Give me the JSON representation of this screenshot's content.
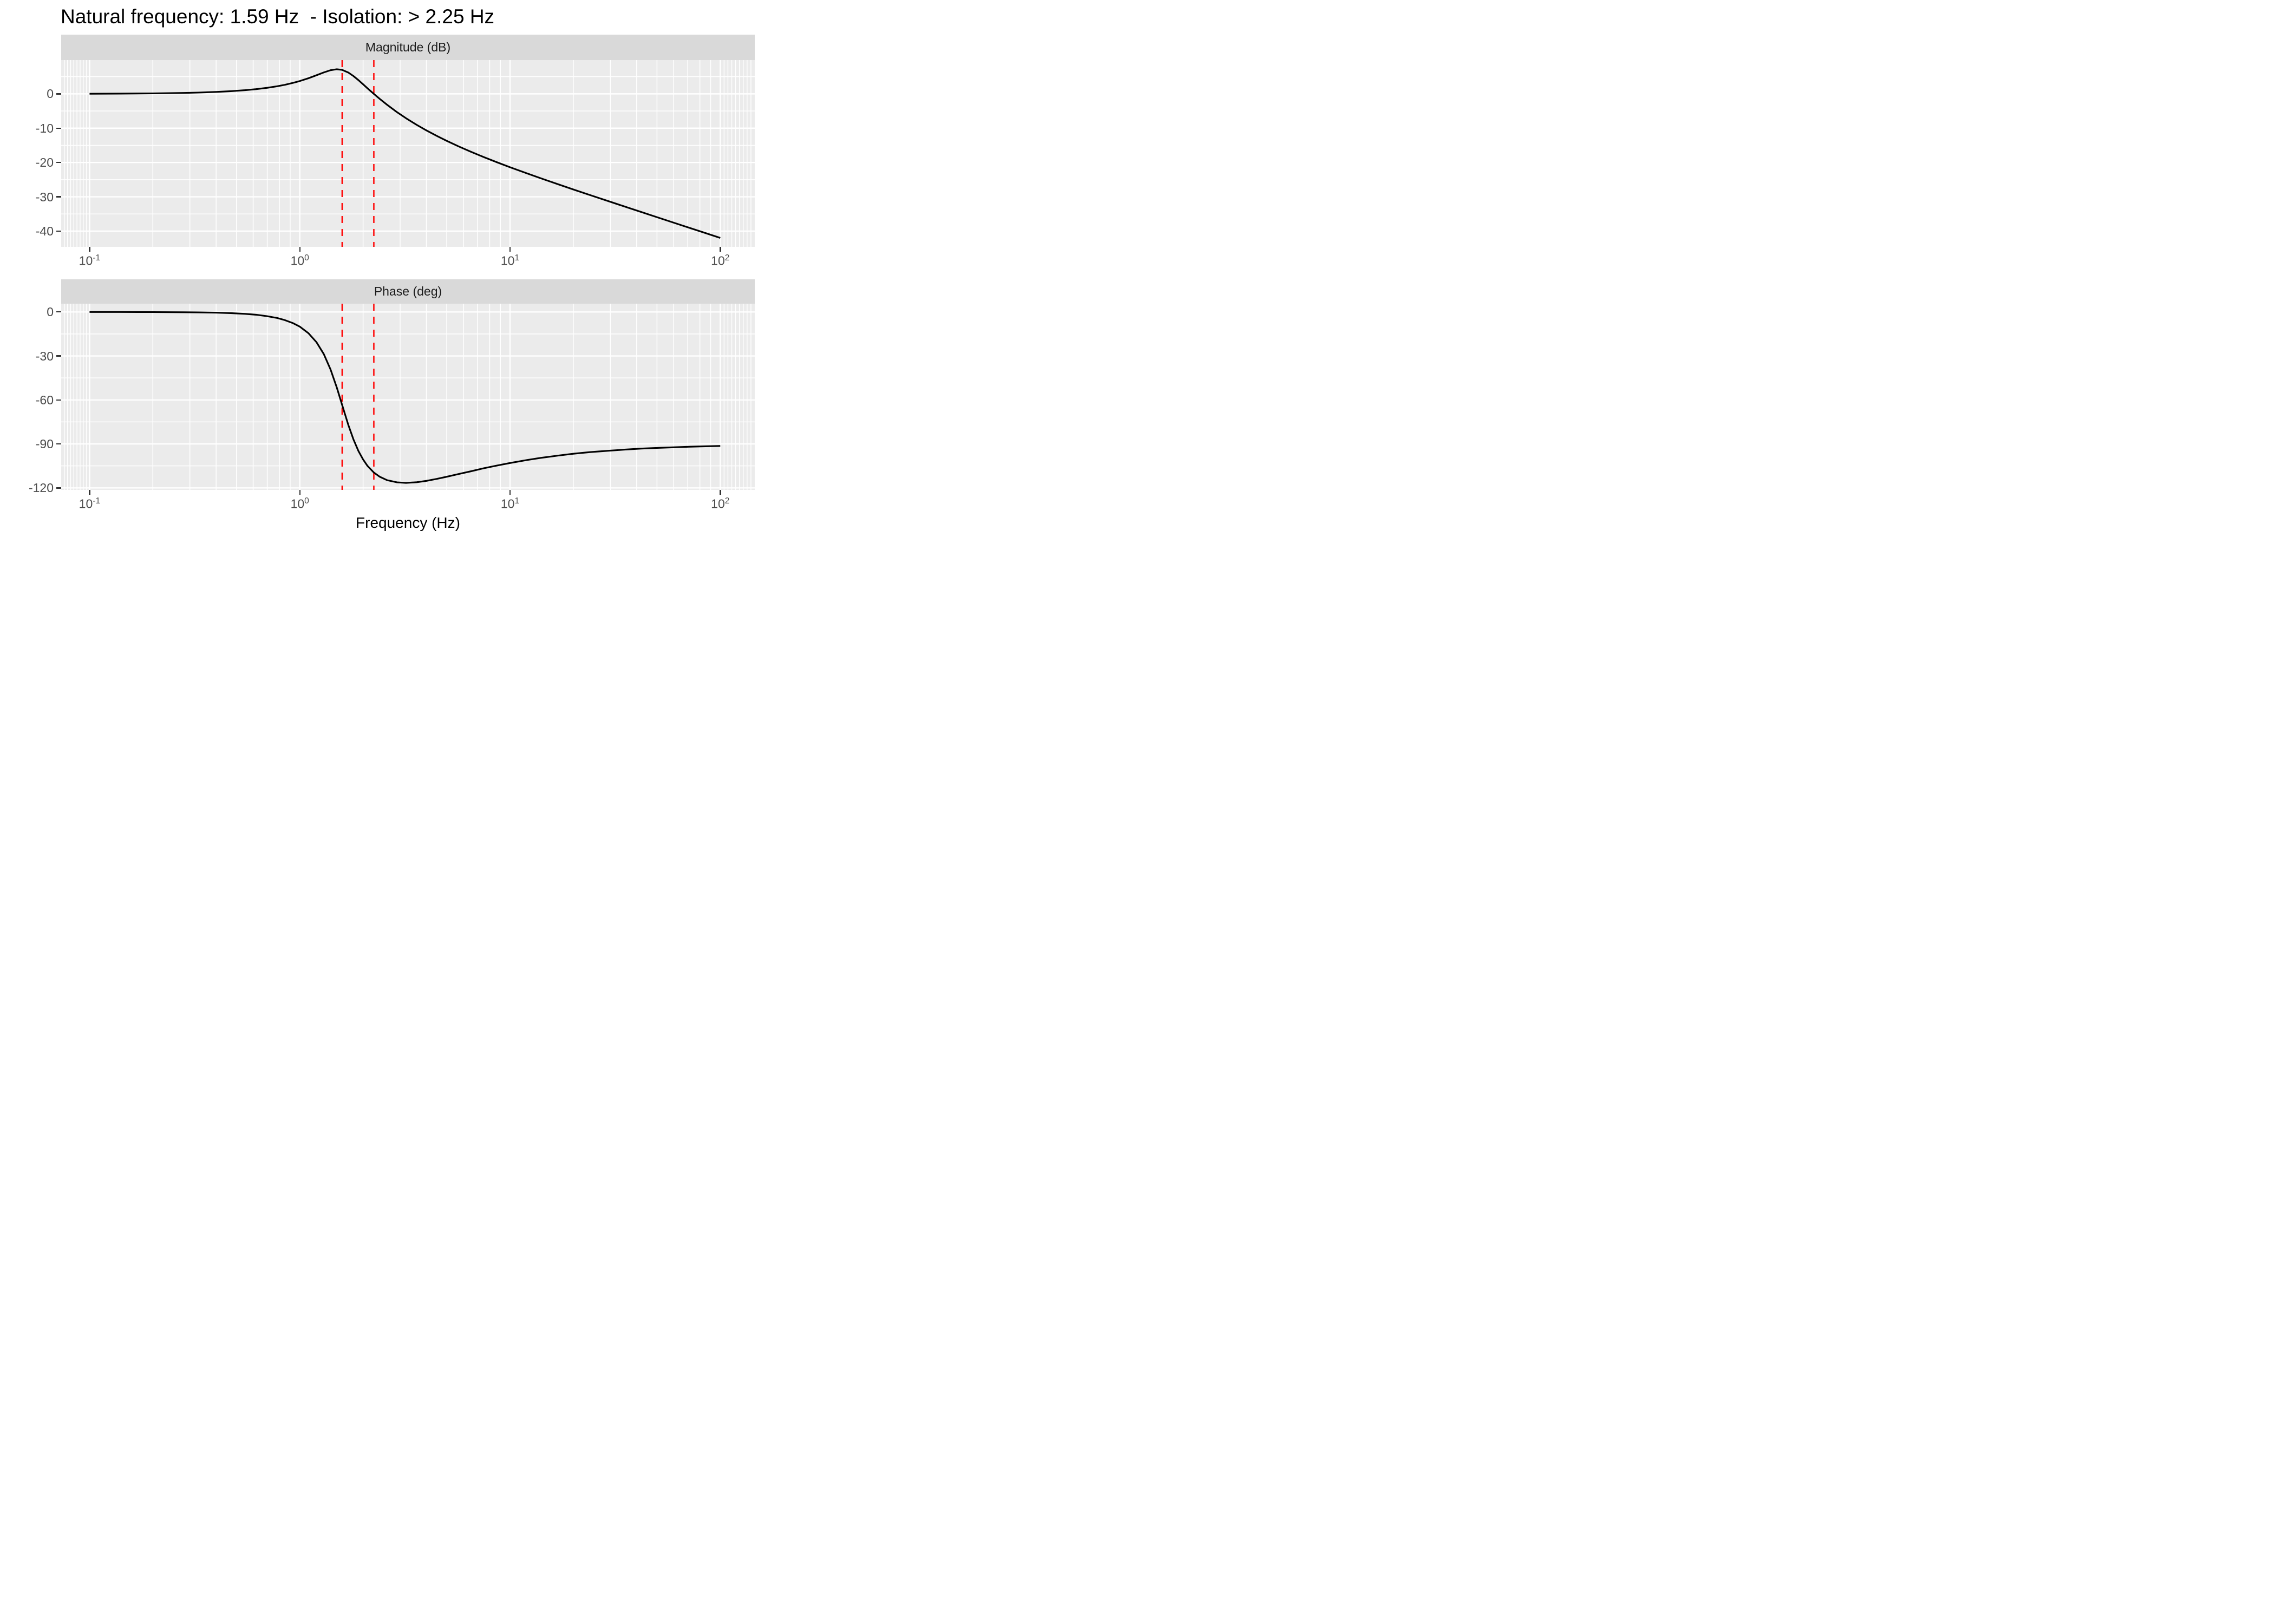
{
  "title": "Natural frequency: 1.59 Hz  - Isolation: > 2.25 Hz",
  "chart_data": {
    "type": "line",
    "title": "Natural frequency: 1.59 Hz  - Isolation: > 2.25 Hz",
    "layout_hint": "two stacked facet panels sharing a log10 frequency x-axis, ggplot gray theme, white grid, no legend",
    "x_axis": {
      "label": "Frequency (Hz)",
      "scale": "log10",
      "tick_base": "10",
      "tick_exponents": [
        -1,
        0,
        1,
        2
      ],
      "tick_values_hz": [
        0.1,
        1,
        10,
        100
      ],
      "minor_ticks_hz": [
        0.2,
        0.3,
        0.4,
        0.5,
        0.6,
        0.7,
        0.8,
        0.9,
        2,
        3,
        4,
        5,
        6,
        7,
        8,
        9,
        20,
        30,
        40,
        50,
        60,
        70,
        80,
        90
      ],
      "range_log10": [
        -1.135,
        2.164
      ]
    },
    "panels": [
      {
        "title": "Magnitude (dB)",
        "y_ticks": [
          0,
          -10,
          -20,
          -30,
          -40
        ],
        "y_minor_ticks": [
          5,
          -5,
          -15,
          -25,
          -35
        ],
        "ylim": [
          -44.59,
          9.84
        ],
        "series": "magnitude_db"
      },
      {
        "title": "Phase (deg)",
        "y_ticks": [
          0,
          -30,
          -60,
          -90,
          -120
        ],
        "y_minor_ticks": [
          -15,
          -45,
          -75,
          -105
        ],
        "ylim": [
          -121.36,
          5.64
        ],
        "series": "phase_deg"
      }
    ],
    "reference_lines": {
      "labels": [
        "natural frequency",
        "isolation threshold"
      ],
      "frequencies_hz": [
        1.59,
        2.25
      ],
      "color": "#FF0000",
      "linetype": "dashed"
    },
    "series": {
      "frequency_hz": [
        0.1,
        0.14,
        0.2,
        0.28,
        0.33,
        0.4,
        0.47,
        0.55,
        0.62,
        0.7,
        0.78,
        0.85,
        0.93,
        1.0,
        1.1,
        1.2,
        1.3,
        1.4,
        1.5,
        1.59,
        1.7,
        1.8,
        1.9,
        2.0,
        2.1,
        2.25,
        2.4,
        2.6,
        2.9,
        3.2,
        3.6,
        4.0,
        4.5,
        5.0,
        5.7,
        6.5,
        7.5,
        8.7,
        10,
        12,
        14,
        17,
        20,
        24,
        29,
        35,
        42,
        50,
        60,
        72,
        85,
        100
      ],
      "magnitude_db": [
        0.03,
        0.07,
        0.14,
        0.27,
        0.38,
        0.56,
        0.78,
        1.07,
        1.37,
        1.76,
        2.21,
        2.65,
        3.21,
        3.74,
        4.56,
        5.42,
        6.25,
        6.89,
        7.17,
        6.99,
        6.23,
        5.19,
        4.0,
        2.79,
        1.61,
        -0.01,
        -1.47,
        -3.18,
        -5.33,
        -7.1,
        -9.04,
        -10.65,
        -12.31,
        -13.7,
        -15.33,
        -16.86,
        -18.43,
        -19.98,
        -21.38,
        -23.15,
        -24.6,
        -26.38,
        -27.86,
        -29.49,
        -31.17,
        -32.82,
        -34.42,
        -35.95,
        -37.54,
        -39.13,
        -40.57,
        -41.99
      ],
      "phase_deg": [
        0.0,
        0.0,
        -0.1,
        -0.2,
        -0.3,
        -0.5,
        -0.8,
        -1.3,
        -1.9,
        -2.9,
        -4.1,
        -5.6,
        -7.7,
        -10.0,
        -14.5,
        -20.6,
        -28.7,
        -39.2,
        -51.6,
        -63.4,
        -76.9,
        -86.9,
        -94.8,
        -100.6,
        -105.0,
        -109.5,
        -112.4,
        -114.7,
        -116.2,
        -116.6,
        -116.1,
        -115.2,
        -113.8,
        -112.4,
        -110.5,
        -108.7,
        -106.6,
        -104.7,
        -103.0,
        -101.0,
        -99.5,
        -97.9,
        -96.7,
        -95.6,
        -94.7,
        -93.9,
        -93.2,
        -92.7,
        -92.3,
        -91.9,
        -91.6,
        -91.4
      ]
    },
    "styles": {
      "curve_color": "#000000",
      "panel_bg": "#EBEBEB",
      "strip_bg": "#D9D9D9",
      "grid_color": "#FFFFFF",
      "axis_text_color": "#4D4D4D",
      "tick_color": "#333333",
      "strip_text_color": "#1A1A1A",
      "title_color": "#000000"
    }
  }
}
